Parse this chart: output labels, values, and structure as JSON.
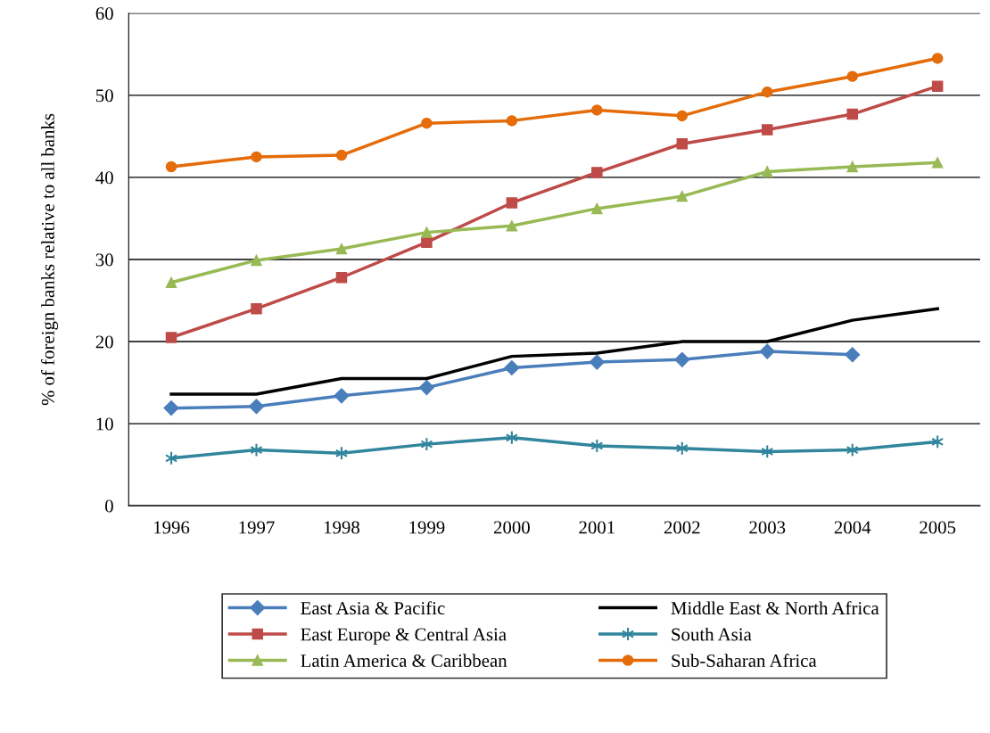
{
  "chart_data": {
    "type": "line",
    "ylabel": "% of foreign banks relative to all banks",
    "categories": [
      "1996",
      "1997",
      "1998",
      "1999",
      "2000",
      "2001",
      "2002",
      "2003",
      "2004",
      "2005"
    ],
    "ylim": [
      0,
      60
    ],
    "yticks": [
      0,
      10,
      20,
      30,
      40,
      50,
      60
    ],
    "grid": "y",
    "legend": "bottom",
    "series": [
      {
        "name": "East Asia & Pacific",
        "color": "#4a7ebb",
        "marker": "diamond",
        "values": [
          11.9,
          12.1,
          13.4,
          14.4,
          16.8,
          17.5,
          17.8,
          18.8,
          18.4,
          null
        ]
      },
      {
        "name": "East Europe & Central Asia",
        "color": "#be4b48",
        "marker": "square",
        "values": [
          20.5,
          24.0,
          27.8,
          32.1,
          36.9,
          40.6,
          44.1,
          45.8,
          47.7,
          51.1
        ]
      },
      {
        "name": "Latin America & Caribbean",
        "color": "#98b954",
        "marker": "triangle",
        "values": [
          27.2,
          29.9,
          31.3,
          33.3,
          34.1,
          36.2,
          37.7,
          40.7,
          41.3,
          41.8
        ]
      },
      {
        "name": "Middle East & North Africa",
        "color": "#000000",
        "marker": "none",
        "values": [
          13.6,
          13.6,
          15.5,
          15.5,
          18.2,
          18.6,
          20.0,
          20.0,
          22.6,
          24.0
        ]
      },
      {
        "name": "South Asia",
        "color": "#31859c",
        "marker": "cross",
        "values": [
          5.8,
          6.8,
          6.4,
          7.5,
          8.3,
          7.3,
          7.0,
          6.6,
          6.8,
          7.8
        ]
      },
      {
        "name": "Sub-Saharan Africa",
        "color": "#e46c0a",
        "marker": "circle",
        "values": [
          41.3,
          42.5,
          42.7,
          46.6,
          46.9,
          48.2,
          47.5,
          50.4,
          52.3,
          54.5
        ]
      }
    ]
  }
}
